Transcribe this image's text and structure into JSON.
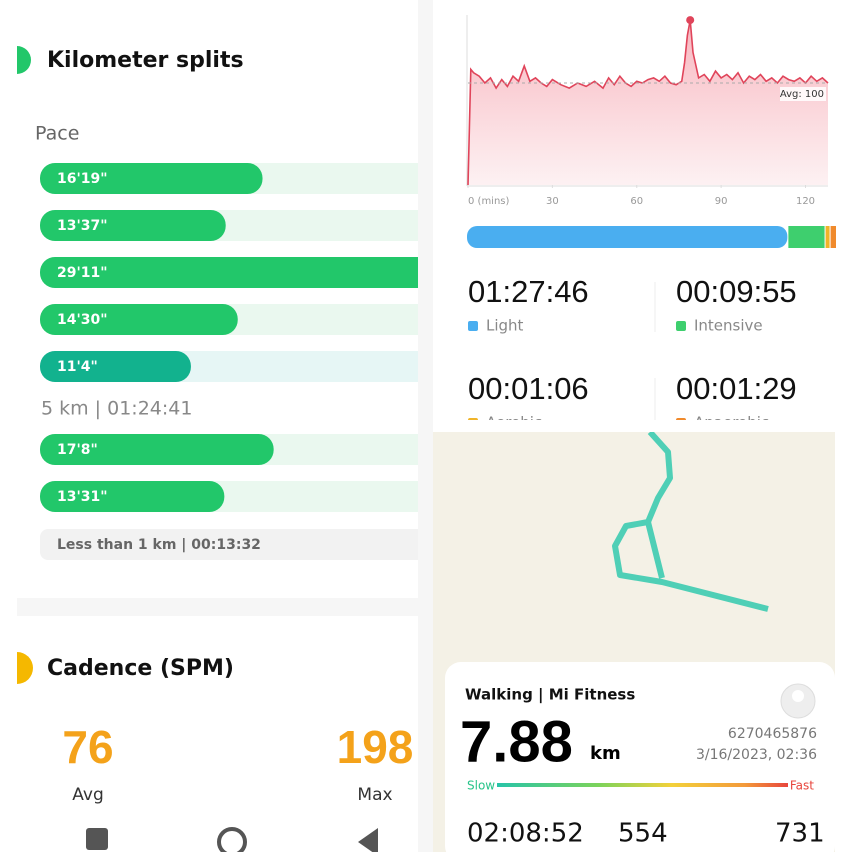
{
  "splits": {
    "title": "Kilometer splits",
    "axis_label": "Pace",
    "groups": [
      {
        "paces": [
          "16'19\"",
          "13'37\"",
          "29'11\"",
          "14'30\"",
          "11'4\""
        ],
        "summary": "5 km | 01:24:41"
      },
      {
        "paces": [
          "17'8\"",
          "13'31\""
        ]
      }
    ],
    "remainder": "Less than 1 km | 00:13:32"
  },
  "cadence": {
    "title": "Cadence (SPM)",
    "stats": [
      {
        "value": 76,
        "label": "Avg"
      },
      {
        "value": 198,
        "label": "Max"
      }
    ]
  },
  "chart_data": {
    "type": "line",
    "x": [
      0,
      1,
      2,
      4,
      6,
      8,
      10,
      12,
      14,
      16,
      18,
      20,
      22,
      24,
      26,
      28,
      30,
      33,
      36,
      39,
      42,
      45,
      48,
      50,
      52,
      54,
      56,
      58,
      60,
      62,
      64,
      66,
      68,
      70,
      72,
      74,
      76,
      77,
      78,
      79,
      80,
      82,
      84,
      86,
      88,
      90,
      92,
      94,
      96,
      98,
      100,
      102,
      104,
      106,
      108,
      110,
      112,
      114,
      116,
      118,
      120,
      122,
      124,
      126,
      128
    ],
    "series": [
      {
        "color": "#e0445a",
        "values": [
          40,
          108,
          106,
          104,
          100,
          103,
          97,
          102,
          98,
          104,
          101,
          110,
          101,
          103,
          100,
          98,
          102,
          99,
          97,
          100,
          98,
          101,
          97,
          103,
          99,
          104,
          100,
          98,
          101,
          100,
          102,
          103,
          101,
          104,
          100,
          99,
          101,
          112,
          128,
          137,
          118,
          103,
          105,
          101,
          107,
          103,
          105,
          102,
          106,
          100,
          104,
          102,
          105,
          101,
          103,
          100,
          104,
          102,
          101,
          103,
          100,
          104,
          101,
          103,
          100
        ]
      }
    ],
    "xlim": [
      0,
      128
    ],
    "ylim": [
      40,
      140
    ],
    "xticks": [
      {
        "value": 0,
        "label": "0 (mins)"
      },
      30,
      60,
      90,
      120
    ],
    "avg": {
      "value": 100,
      "label": "Avg: 100"
    }
  },
  "zones": [
    {
      "time": "01:27:46",
      "label": "Light",
      "color": "#4aaef0"
    },
    {
      "time": "00:09:55",
      "label": "Intensive",
      "color": "#3ecf6e"
    },
    {
      "time": "00:01:06",
      "label": "Aerobic",
      "color": "#f0b429"
    },
    {
      "time": "00:01:29",
      "label": "Anaerobic",
      "color": "#f08a2c"
    }
  ],
  "activity": {
    "title": "Walking | Mi Fitness",
    "distance": 7.88,
    "unit": "km",
    "id": "6270465876",
    "date": "3/16/2023, 02:36",
    "scale": [
      "Slow",
      "Fast"
    ],
    "stats": [
      "02:08:52",
      "554",
      "731"
    ]
  }
}
